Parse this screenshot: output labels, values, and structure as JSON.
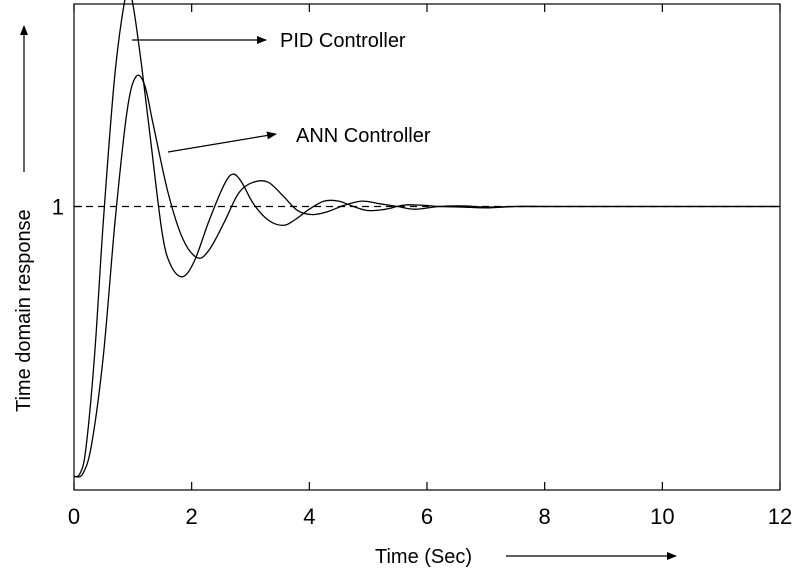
{
  "chart_data": {
    "type": "line",
    "title": "",
    "xlabel": "Time (Sec)",
    "ylabel": "Time domain response",
    "xlim": [
      0,
      12
    ],
    "ylim": [
      -0.05,
      1.75
    ],
    "x_ticks": [
      "0",
      "2",
      "4",
      "6",
      "8",
      "10",
      "12"
    ],
    "y_ticks": [
      "1"
    ],
    "reference_line": {
      "y": 1,
      "style": "dashed"
    },
    "series": [
      {
        "name": "PID Controller",
        "x": [
          0,
          0.1,
          0.2,
          0.35,
          0.5,
          0.7,
          0.9,
          1.0,
          1.15,
          1.3,
          1.5,
          1.65,
          1.85,
          2.05,
          2.3,
          2.55,
          2.7,
          2.85,
          3.05,
          3.3,
          3.55,
          3.75,
          4.0,
          4.25,
          4.5,
          4.75,
          5.0,
          5.3,
          5.6,
          5.9,
          6.2,
          6.6,
          7.0,
          7.5,
          8.0,
          9.0,
          10.0,
          11.0,
          12.0
        ],
        "y": [
          0.0,
          0.01,
          0.1,
          0.45,
          0.95,
          1.5,
          1.8,
          1.75,
          1.52,
          1.25,
          0.9,
          0.78,
          0.74,
          0.8,
          0.95,
          1.08,
          1.12,
          1.09,
          1.01,
          0.95,
          0.93,
          0.95,
          0.99,
          1.02,
          1.02,
          1.0,
          0.985,
          0.99,
          1.005,
          1.005,
          1.0,
          0.998,
          0.995,
          1.0,
          1.0,
          1.0,
          1.0,
          1.0,
          1.0
        ],
        "label": "PID Controller"
      },
      {
        "name": "ANN Controller",
        "x": [
          0,
          0.15,
          0.3,
          0.5,
          0.7,
          0.9,
          1.05,
          1.2,
          1.35,
          1.6,
          1.85,
          2.1,
          2.3,
          2.55,
          2.8,
          3.05,
          3.3,
          3.55,
          3.8,
          4.05,
          4.3,
          4.6,
          4.9,
          5.2,
          5.5,
          5.8,
          6.2,
          6.6,
          7.0,
          7.5,
          8.0,
          9.0,
          10.0,
          11.0,
          12.0
        ],
        "y": [
          0.0,
          0.01,
          0.12,
          0.45,
          0.95,
          1.35,
          1.48,
          1.45,
          1.3,
          1.05,
          0.88,
          0.81,
          0.84,
          0.94,
          1.05,
          1.09,
          1.09,
          1.04,
          0.985,
          0.97,
          0.98,
          1.005,
          1.02,
          1.01,
          1.0,
          0.99,
          1.0,
          1.002,
          0.998,
          1.0,
          1.0,
          1.0,
          1.0,
          1.0,
          1.0
        ],
        "label": "ANN Controller"
      }
    ],
    "annotations": [
      {
        "text": "PID Controller",
        "points_to_series": "PID Controller"
      },
      {
        "text": "ANN Controller",
        "points_to_series": "ANN Controller"
      }
    ],
    "grid": false,
    "legend": "none"
  }
}
